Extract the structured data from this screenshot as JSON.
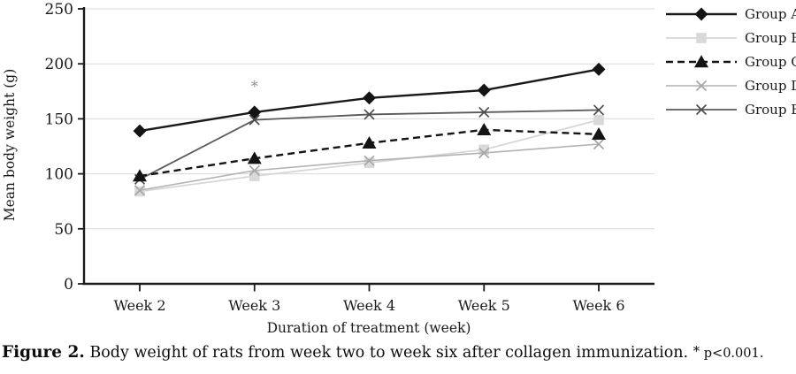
{
  "figure": {
    "caption_label": "Figure 2.",
    "caption_text": "Body weight of rats from week two to week six after collagen immunization.",
    "caption_note_asterisk": "*",
    "caption_note": "p<0.001."
  },
  "chart_data": {
    "type": "line",
    "title": "",
    "xlabel": "Duration of treatment (week)",
    "ylabel": "Mean body weight (g)",
    "categories": [
      "Week 2",
      "Week 3",
      "Week 4",
      "Week 5",
      "Week 6"
    ],
    "y_ticks": [
      0,
      50,
      100,
      150,
      200,
      250
    ],
    "ylim": [
      0,
      250
    ],
    "grid": true,
    "legend_position": "right",
    "series": [
      {
        "name": "Group A",
        "values": [
          139,
          156,
          169,
          176,
          195
        ],
        "color": "#1a1a1a",
        "marker": "diamond",
        "marker_color": "#141414",
        "line_width": 2.4,
        "dash": ""
      },
      {
        "name": "Group B",
        "values": [
          84,
          98,
          110,
          122,
          149
        ],
        "color": "#d6d6d6",
        "marker": "square",
        "marker_color": "#d9d9d9",
        "line_width": 1.8,
        "dash": ""
      },
      {
        "name": "Group C",
        "values": [
          98,
          114,
          128,
          140,
          136
        ],
        "color": "#141414",
        "marker": "triangle",
        "marker_color": "#141414",
        "line_width": 2.4,
        "dash": "8 5"
      },
      {
        "name": "Group D",
        "values": [
          85,
          103,
          112,
          119,
          127
        ],
        "color": "#b2b2b2",
        "marker": "x",
        "marker_color": "#a6a6a6",
        "line_width": 1.6,
        "dash": ""
      },
      {
        "name": "Group E",
        "values": [
          95,
          149,
          154,
          156,
          158
        ],
        "color": "#5a5a5a",
        "marker": "x",
        "marker_color": "#4d4d4d",
        "line_width": 1.8,
        "dash": ""
      }
    ],
    "annotations": [
      {
        "text": "*",
        "category": "Week 3",
        "value": 180,
        "color": "#8c8c8c"
      }
    ],
    "colors": {
      "axis": "#1a1a1a",
      "grid": "#d9d9d9",
      "tick_text": "#1a1a1a"
    }
  }
}
